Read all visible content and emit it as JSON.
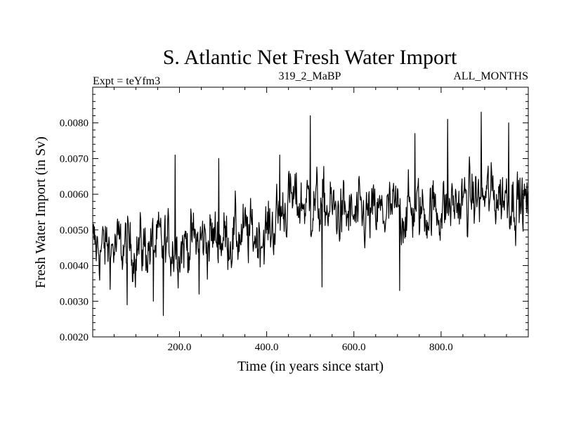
{
  "chart_data": {
    "type": "line",
    "title": "S. Atlantic Net Fresh Water Import",
    "subtitle_left": "Expt = teYfm3",
    "subtitle_center": "319_2_MaBP",
    "subtitle_right": "ALL_MONTHS",
    "xlabel": "Time (in years since start)",
    "ylabel": "Fresh Water Import (in Sv)",
    "xlim": [
      1,
      1000
    ],
    "ylim": [
      0.002,
      0.009
    ],
    "xticks": [
      200,
      400,
      600,
      800
    ],
    "xtick_labels": [
      "200.0",
      "400.0",
      "600.0",
      "800.0"
    ],
    "yticks": [
      0.002,
      0.003,
      0.004,
      0.005,
      0.006,
      0.007,
      0.008
    ],
    "ytick_labels": [
      "0.0020",
      "0.0030",
      "0.0040",
      "0.0050",
      "0.0060",
      "0.0070",
      "0.0080"
    ],
    "grid": false,
    "series": [
      {
        "name": "Net Fresh Water Import",
        "trend": [
          [
            1,
            0.0045
          ],
          [
            100,
            0.0045
          ],
          [
            200,
            0.0046
          ],
          [
            300,
            0.0048
          ],
          [
            400,
            0.0049
          ],
          [
            450,
            0.0058
          ],
          [
            520,
            0.0057
          ],
          [
            600,
            0.0053
          ],
          [
            700,
            0.0055
          ],
          [
            800,
            0.0056
          ],
          [
            880,
            0.0059
          ],
          [
            950,
            0.006
          ],
          [
            1000,
            0.0057
          ]
        ],
        "noise_amplitude": 0.0006,
        "spikes": [
          [
            163,
            0.0026
          ],
          [
            80,
            0.0029
          ],
          [
            500,
            0.0082
          ],
          [
            892,
            0.0083
          ],
          [
            815,
            0.0081
          ],
          [
            955,
            0.008
          ],
          [
            740,
            0.0077
          ],
          [
            527,
            0.0034
          ],
          [
            705,
            0.0033
          ],
          [
            245,
            0.0032
          ],
          [
            190,
            0.0071
          ],
          [
            290,
            0.007
          ],
          [
            430,
            0.0071
          ],
          [
            140,
            0.003
          ]
        ],
        "min": 0.0026,
        "max": 0.0083
      }
    ]
  }
}
